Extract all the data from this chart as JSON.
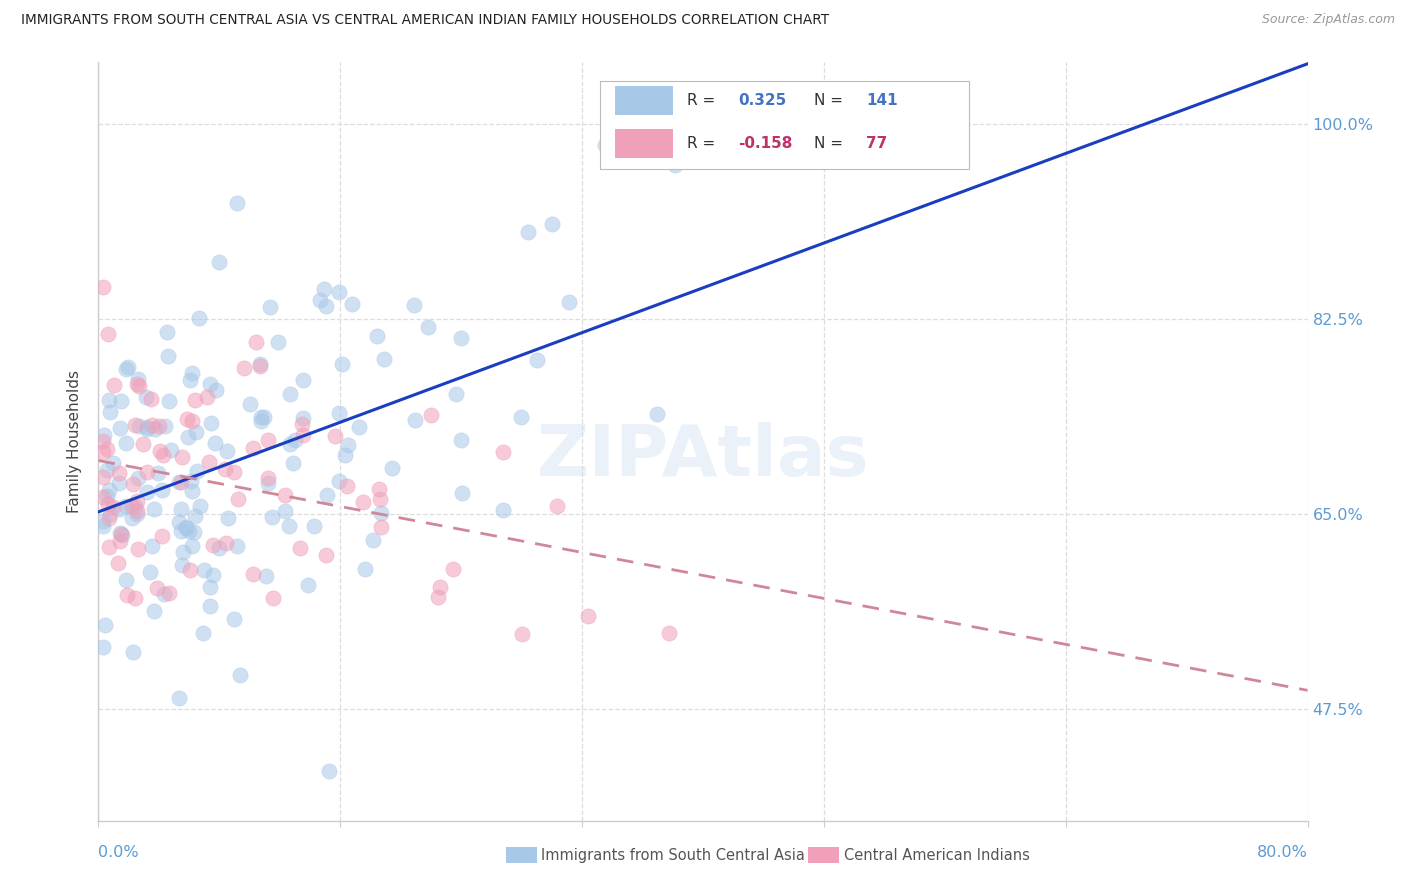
{
  "title": "IMMIGRANTS FROM SOUTH CENTRAL ASIA VS CENTRAL AMERICAN INDIAN FAMILY HOUSEHOLDS CORRELATION CHART",
  "source": "Source: ZipAtlas.com",
  "ylabel": "Family Households",
  "ytick_labels": [
    "47.5%",
    "65.0%",
    "82.5%",
    "100.0%"
  ],
  "ytick_values": [
    0.475,
    0.65,
    0.825,
    1.0
  ],
  "xlim": [
    0.0,
    0.8
  ],
  "ylim": [
    0.375,
    1.055
  ],
  "legend_r1": "R = ",
  "legend_v1": "0.325",
  "legend_n1_label": "N = ",
  "legend_n1": "141",
  "legend_r2": "R = ",
  "legend_v2": "-0.158",
  "legend_n2_label": "N = ",
  "legend_n2": "77",
  "color_blue": "#A8C8E8",
  "color_pink": "#F0A0B8",
  "color_blue_line": "#1A3EBF",
  "color_pink_line": "#D08898",
  "color_axis": "#CCCCCC",
  "color_grid": "#DDDDDD",
  "color_title": "#222222",
  "color_blue_label": "#4472C4",
  "color_pink_label": "#C0306A",
  "color_right_labels": "#5B9BD5",
  "watermark": "ZIPAtlas",
  "label_blue": "Immigrants from South Central Asia",
  "label_pink": "Central American Indians"
}
